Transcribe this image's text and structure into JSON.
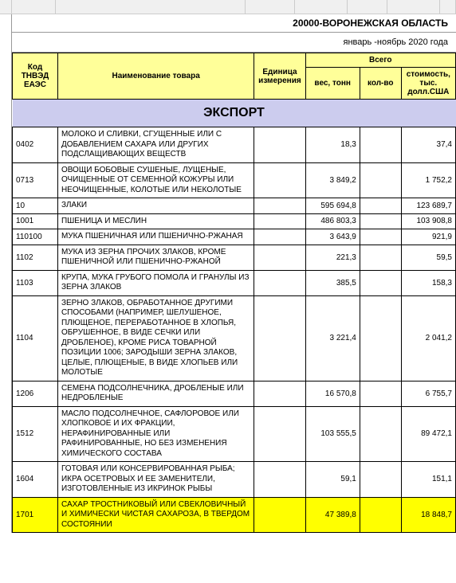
{
  "colLetters": {
    "widths": [
      15,
      55,
      238,
      62,
      66,
      50,
      66,
      20
    ],
    "labels": [
      "",
      "",
      "",
      "",
      "",
      "",
      "",
      ""
    ]
  },
  "header": {
    "region": "20000-ВОРОНЕЖСКАЯ ОБЛАСТЬ",
    "period": "январь -ноябрь 2020 года"
  },
  "tableHeader": {
    "code": "Код ТНВЭД ЕАЭС",
    "name": "Наименование товара",
    "unit": "Единица измерения",
    "totalGroup": "Всего",
    "weight": "вес, тонн",
    "qty": "кол-во",
    "cost": "стоимость, тыс. долл.США"
  },
  "sectionTitle": "ЭКСПОРТ",
  "rows": [
    {
      "code": "0402",
      "name": "МОЛОКО И СЛИВКИ, СГУЩЕННЫЕ ИЛИ С ДОБАВЛЕНИЕМ САХАРА ИЛИ ДРУГИХ ПОДСЛАЩИВАЮЩИХ ВЕЩЕСТВ",
      "weight": "18,3",
      "qty": "",
      "cost": "37,4",
      "hl": false
    },
    {
      "code": "0713",
      "name": "ОВОЩИ БОБОВЫЕ СУШЕНЫЕ, ЛУЩЕНЫЕ, ОЧИЩЕННЫЕ ОТ СЕМЕННОЙ КОЖУРЫ ИЛИ НЕОЧИЩЕННЫЕ, КОЛОТЫЕ ИЛИ НЕКОЛОТЫЕ",
      "weight": "3 849,2",
      "qty": "",
      "cost": "1 752,2",
      "hl": false
    },
    {
      "code": "10",
      "name": "ЗЛАКИ",
      "weight": "595 694,8",
      "qty": "",
      "cost": "123 689,7",
      "hl": false
    },
    {
      "code": "1001",
      "name": "ПШЕНИЦА И МЕСЛИН",
      "weight": "486 803,3",
      "qty": "",
      "cost": "103 908,8",
      "hl": false
    },
    {
      "code": "110100",
      "name": "МУКА ПШЕНИЧНАЯ ИЛИ ПШЕНИЧНО-РЖАНАЯ",
      "weight": "3 643,9",
      "qty": "",
      "cost": "921,9",
      "hl": false
    },
    {
      "code": "1102",
      "name": "МУКА ИЗ ЗЕРНА ПРОЧИХ ЗЛАКОВ, КРОМЕ ПШЕНИЧНОЙ ИЛИ ПШЕНИЧНО-РЖАНОЙ",
      "weight": "221,3",
      "qty": "",
      "cost": "59,5",
      "hl": false
    },
    {
      "code": "1103",
      "name": "КРУПА, МУКА ГРУБОГО ПОМОЛА И ГРАНУЛЫ ИЗ ЗЕРНА ЗЛАКОВ",
      "weight": "385,5",
      "qty": "",
      "cost": "158,3",
      "hl": false
    },
    {
      "code": "1104",
      "name": "ЗЕРНО ЗЛАКОВ, ОБРАБОТАННОЕ ДРУГИМИ СПОСОБАМИ (НАПРИМЕР, ШЕЛУШЕНОЕ, ПЛЮЩЕНОЕ, ПЕРЕРАБОТАННОЕ В ХЛОПЬЯ, ОБРУШЕННОЕ, В ВИДЕ СЕЧКИ ИЛИ ДРОБЛЕНОЕ), КРОМЕ РИСА ТОВАРНОЙ ПОЗИЦИИ 1006; ЗАРОДЫШИ ЗЕРНА ЗЛАКОВ, ЦЕЛЫЕ, ПЛЮЩЕНЫЕ, В ВИДЕ ХЛОПЬЕВ ИЛИ МОЛОТЫЕ",
      "weight": "3 221,4",
      "qty": "",
      "cost": "2 041,2",
      "hl": false
    },
    {
      "code": "1206",
      "name": "СЕМЕНА ПОДСОЛНЕЧНИКА, ДРОБЛЕНЫЕ ИЛИ НЕДРОБЛЕНЫЕ",
      "weight": "16 570,8",
      "qty": "",
      "cost": "6 755,7",
      "hl": false
    },
    {
      "code": "1512",
      "name": "МАСЛО ПОДСОЛНЕЧНОЕ, САФЛОРОВОЕ ИЛИ ХЛОПКОВОЕ И ИХ ФРАКЦИИ, НЕРАФИНИРОВАННЫЕ ИЛИ РАФИНИРОВАННЫЕ, НО БЕЗ ИЗМЕНЕНИЯ ХИМИЧЕСКОГО СОСТАВА",
      "weight": "103 555,5",
      "qty": "",
      "cost": "89 472,1",
      "hl": false
    },
    {
      "code": "1604",
      "name": "ГОТОВАЯ ИЛИ КОНСЕРВИРОВАННАЯ РЫБА; ИКРА ОСЕТРОВЫХ И ЕЕ ЗАМЕНИТЕЛИ, ИЗГОТОВЛЕННЫЕ ИЗ ИКРИНОК РЫБЫ",
      "weight": "59,1",
      "qty": "",
      "cost": "151,1",
      "hl": false
    },
    {
      "code": "1701",
      "name": "САХАР ТРОСТНИКОВЫЙ ИЛИ СВЕКЛОВИЧНЫЙ И ХИМИЧЕСКИ ЧИСТАЯ САХАРОЗА, В ТВЕРДОМ СОСТОЯНИИ",
      "weight": "47 389,8",
      "qty": "",
      "cost": "18 848,7",
      "hl": true
    }
  ],
  "style": {
    "headerBg": "#ffff99",
    "highlightBg": "#ffff00",
    "exportBg": "#ccccee",
    "border": "#000000",
    "font": "Arial",
    "fontSizeCell": 10,
    "fontSizeExport": 16
  }
}
